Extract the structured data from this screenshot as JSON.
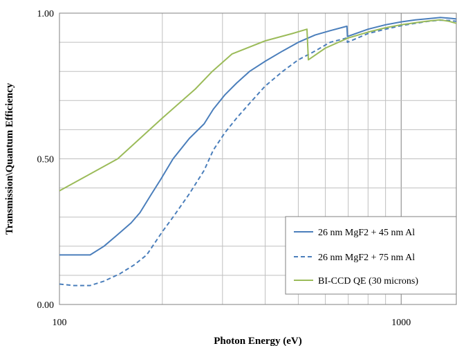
{
  "chart_data": {
    "type": "line",
    "title": "",
    "xlabel": "Photon Energy (eV)",
    "ylabel": "Transmission\\Quantum Efficiency",
    "xscale": "log",
    "xlim": [
      100,
      1450
    ],
    "ylim": [
      0,
      1
    ],
    "x_ticks": [
      {
        "value": 100,
        "label": "100"
      },
      {
        "value": 1000,
        "label": "1000"
      }
    ],
    "y_ticks": [
      {
        "value": 0,
        "label": "0.00"
      },
      {
        "value": 0.5,
        "label": "0.50"
      },
      {
        "value": 1,
        "label": "1.00"
      }
    ],
    "grid": "on",
    "legend_position": "lower-right",
    "series": [
      {
        "name": "26 nm MgF2 + 45 nm Al",
        "color": "#4a7ebb",
        "dash": "solid",
        "points": [
          [
            100,
            0.17
          ],
          [
            123,
            0.17
          ],
          [
            135,
            0.2
          ],
          [
            148,
            0.24
          ],
          [
            162,
            0.28
          ],
          [
            172,
            0.315
          ],
          [
            185,
            0.375
          ],
          [
            198,
            0.43
          ],
          [
            215,
            0.5
          ],
          [
            240,
            0.57
          ],
          [
            265,
            0.62
          ],
          [
            282,
            0.67
          ],
          [
            305,
            0.72
          ],
          [
            330,
            0.76
          ],
          [
            360,
            0.8
          ],
          [
            400,
            0.835
          ],
          [
            450,
            0.87
          ],
          [
            500,
            0.9
          ],
          [
            560,
            0.925
          ],
          [
            620,
            0.94
          ],
          [
            694,
            0.955
          ],
          [
            696,
            0.92
          ],
          [
            800,
            0.945
          ],
          [
            900,
            0.96
          ],
          [
            1000,
            0.97
          ],
          [
            1100,
            0.977
          ],
          [
            1200,
            0.981
          ],
          [
            1300,
            0.985
          ],
          [
            1380,
            0.983
          ],
          [
            1450,
            0.98
          ]
        ]
      },
      {
        "name": "26 nm MgF2 + 75 nm Al",
        "color": "#4a7ebb",
        "dash": "dashed",
        "points": [
          [
            100,
            0.07
          ],
          [
            110,
            0.065
          ],
          [
            123,
            0.065
          ],
          [
            135,
            0.08
          ],
          [
            150,
            0.105
          ],
          [
            165,
            0.135
          ],
          [
            180,
            0.17
          ],
          [
            200,
            0.25
          ],
          [
            215,
            0.3
          ],
          [
            240,
            0.38
          ],
          [
            265,
            0.46
          ],
          [
            282,
            0.53
          ],
          [
            305,
            0.59
          ],
          [
            330,
            0.64
          ],
          [
            360,
            0.69
          ],
          [
            400,
            0.75
          ],
          [
            450,
            0.8
          ],
          [
            500,
            0.84
          ],
          [
            560,
            0.87
          ],
          [
            620,
            0.9
          ],
          [
            694,
            0.915
          ],
          [
            696,
            0.9
          ],
          [
            800,
            0.93
          ],
          [
            900,
            0.945
          ],
          [
            1000,
            0.957
          ],
          [
            1100,
            0.965
          ],
          [
            1200,
            0.972
          ],
          [
            1300,
            0.976
          ],
          [
            1380,
            0.975
          ],
          [
            1450,
            0.972
          ]
        ]
      },
      {
        "name": "BI-CCD QE (30 microns)",
        "color": "#9bbb59",
        "dash": "solid",
        "points": [
          [
            100,
            0.39
          ],
          [
            148,
            0.5
          ],
          [
            200,
            0.64
          ],
          [
            250,
            0.74
          ],
          [
            280,
            0.8
          ],
          [
            320,
            0.86
          ],
          [
            400,
            0.905
          ],
          [
            480,
            0.93
          ],
          [
            530,
            0.945
          ],
          [
            535,
            0.84
          ],
          [
            600,
            0.88
          ],
          [
            700,
            0.915
          ],
          [
            800,
            0.935
          ],
          [
            900,
            0.95
          ],
          [
            1000,
            0.96
          ],
          [
            1100,
            0.967
          ],
          [
            1200,
            0.973
          ],
          [
            1300,
            0.977
          ],
          [
            1380,
            0.972
          ],
          [
            1450,
            0.965
          ]
        ]
      }
    ]
  }
}
